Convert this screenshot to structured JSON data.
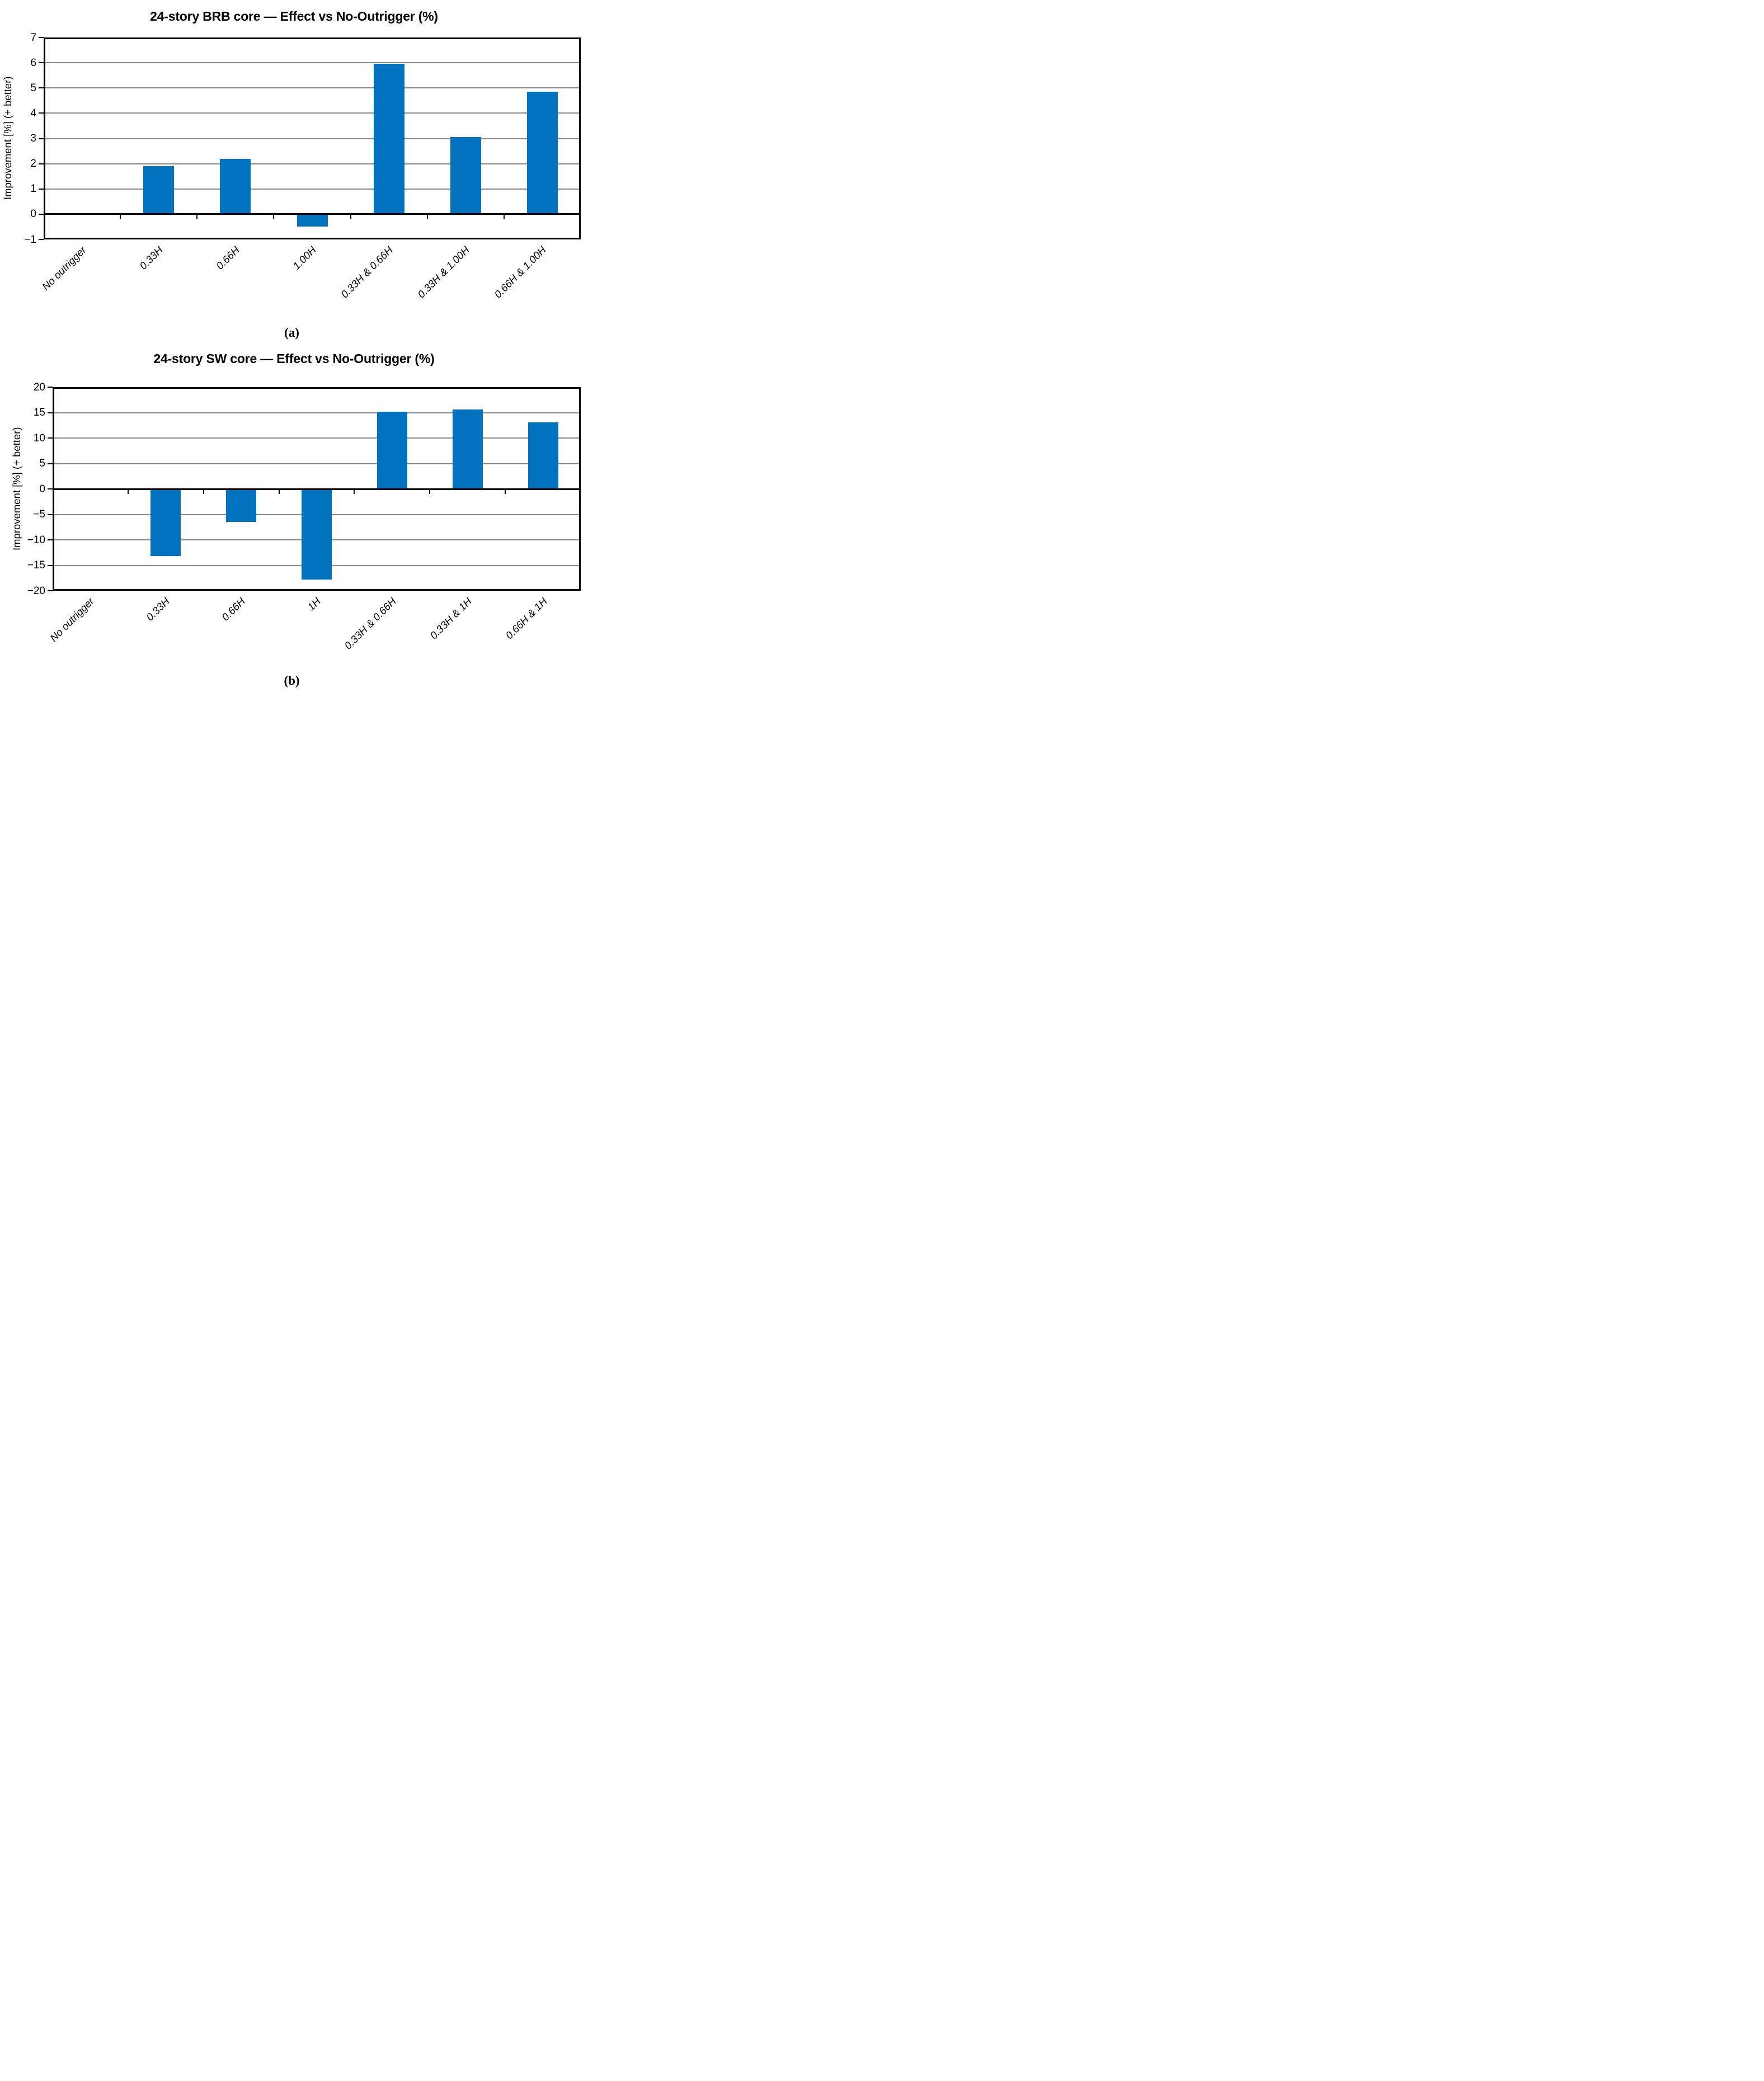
{
  "figure": {
    "caption_a": "(a)",
    "caption_b": "(b)"
  },
  "chart_data": [
    {
      "type": "bar",
      "title": "24-story BRB core — Effect vs No-Outrigger (%)",
      "ylabel": "Improvement [%] (+ better)",
      "xlabel": "",
      "categories": [
        "No outrigger",
        "0.33H",
        "0.66H",
        "1.00H",
        "0.33H & 0.66H",
        "0.33H & 1.00H",
        "0.66H & 1.00H"
      ],
      "values": [
        0,
        1.9,
        2.2,
        -0.5,
        5.95,
        3.05,
        4.85
      ],
      "ylim": [
        -1,
        7
      ],
      "ytick_step": 1,
      "grid": true,
      "legend": "none",
      "bar_color": "#0172BE",
      "grid_color": "#8a8a8a",
      "axis_color": "#000000",
      "caption": "(a)"
    },
    {
      "type": "bar",
      "title": "24-story SW core — Effect vs No-Outrigger (%)",
      "ylabel": "Improvement [%] (+ better)",
      "xlabel": "",
      "categories": [
        "No outrigger",
        "0.33H",
        "0.66H",
        "1H",
        "0.33H & 0.66H",
        "0.33H & 1H",
        "0.66H & 1H"
      ],
      "values": [
        0,
        -13.2,
        -6.5,
        -17.8,
        15.2,
        15.6,
        13.1
      ],
      "ylim": [
        -20,
        20
      ],
      "ytick_step": 5,
      "grid": true,
      "legend": "none",
      "bar_color": "#0172BE",
      "grid_color": "#8a8a8a",
      "axis_color": "#000000",
      "caption": "(b)"
    }
  ]
}
